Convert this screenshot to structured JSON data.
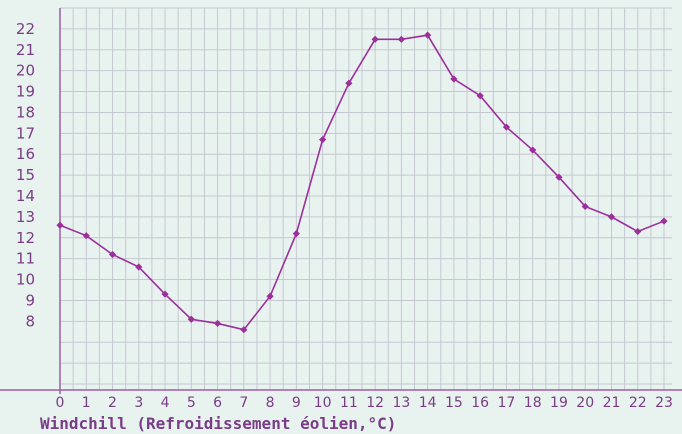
{
  "chart_data": {
    "type": "line",
    "title": "",
    "xlabel": "Windchill (Refroidissement éolien,°C)",
    "ylabel": "",
    "x": [
      0,
      1,
      2,
      3,
      4,
      5,
      6,
      7,
      8,
      9,
      10,
      11,
      12,
      13,
      14,
      15,
      16,
      17,
      18,
      19,
      20,
      21,
      22,
      23
    ],
    "x_tick_labels": [
      "0",
      "1",
      "2",
      "3",
      "4",
      "5",
      "6",
      "7",
      "8",
      "9",
      "10",
      "11",
      "12",
      "13",
      "14",
      "15",
      "16",
      "17",
      "18",
      "19",
      "20",
      "21",
      "22",
      "23"
    ],
    "series": [
      {
        "values": [
          12.6,
          12.1,
          11.2,
          10.6,
          9.3,
          8.1,
          7.9,
          7.6,
          9.2,
          12.2,
          16.7,
          19.4,
          21.5,
          21.5,
          21.7,
          19.6,
          18.8,
          17.3,
          16.2,
          14.9,
          13.5,
          13.0,
          12.3,
          12.8
        ],
        "color": "#9c2f9c"
      }
    ],
    "xlim": [
      0,
      23
    ],
    "ylim": [
      5,
      23
    ],
    "y_ticks": [
      8,
      9,
      10,
      11,
      12,
      13,
      14,
      15,
      16,
      17,
      18,
      19,
      20,
      21,
      22
    ],
    "grid": true,
    "colors": {
      "background": "#e8f3f0",
      "grid": "#c5c8d0",
      "axis": "#9b5ea8",
      "text": "#7a3c86",
      "line": "#9c2f9c"
    }
  }
}
